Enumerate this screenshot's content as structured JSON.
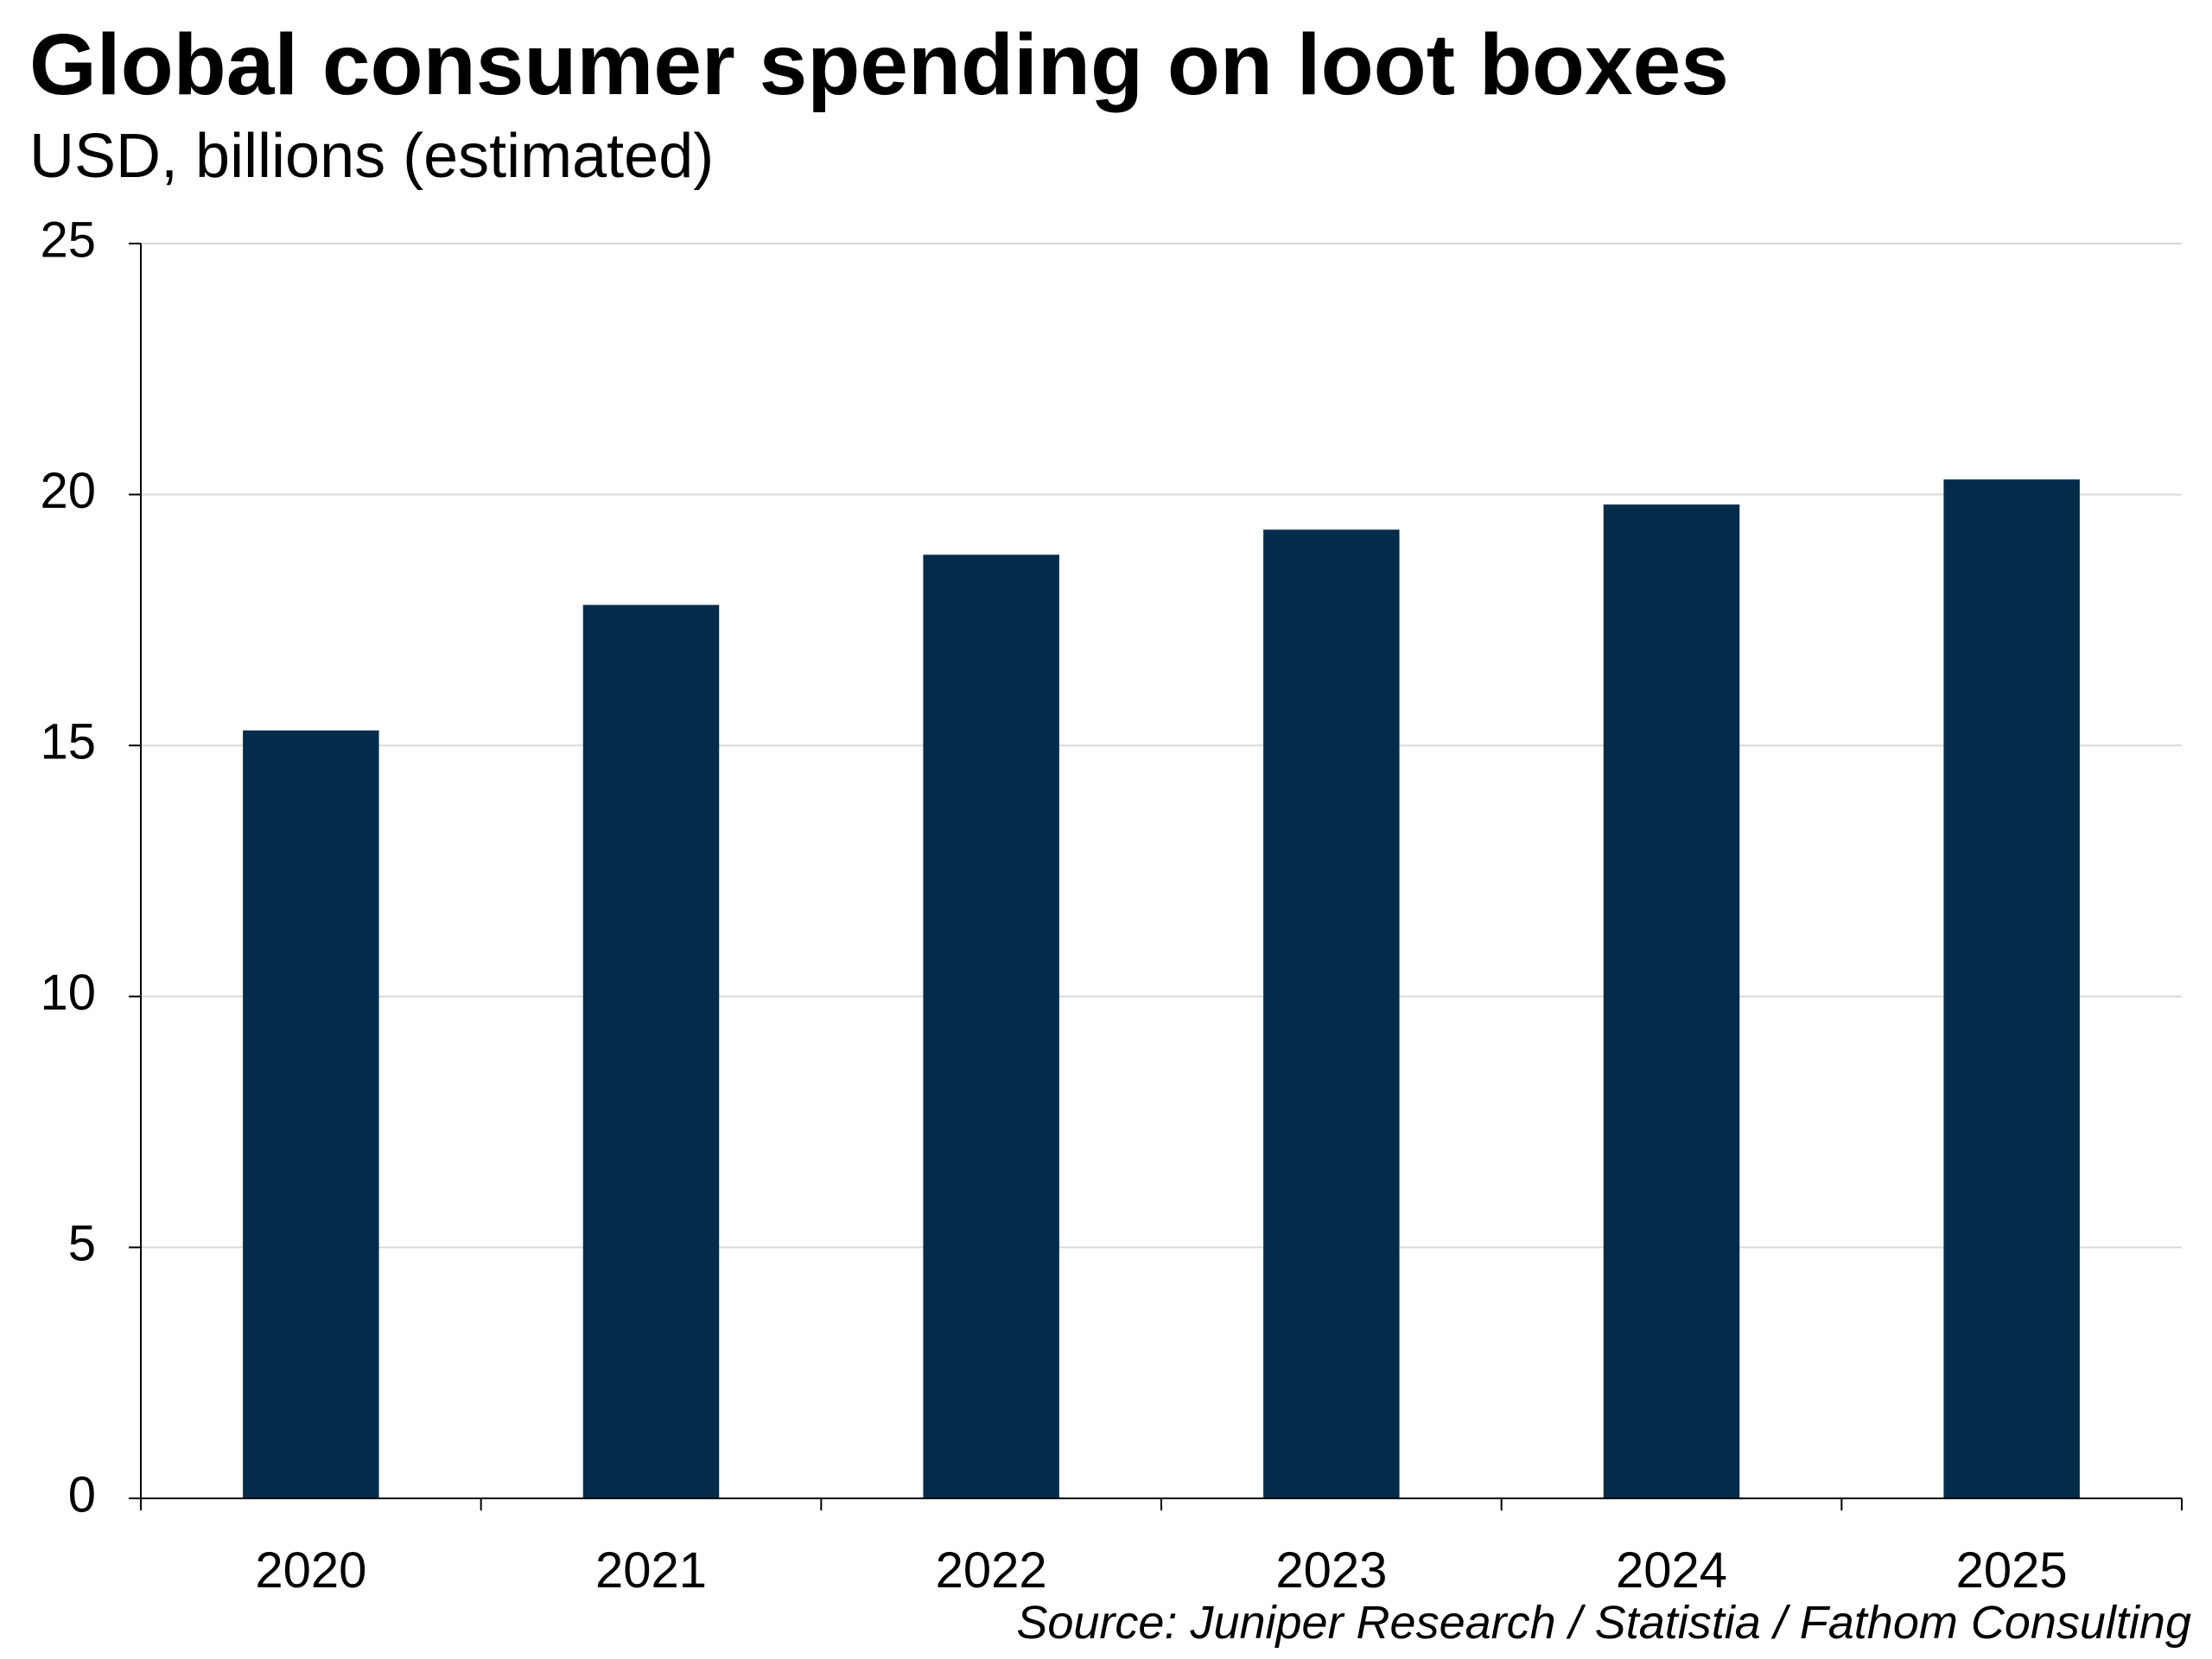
{
  "chart_data": {
    "type": "bar",
    "title": "Global consumer spending on loot boxes",
    "subtitle": "USD, billions (estimated)",
    "categories": [
      "2020",
      "2021",
      "2022",
      "2023",
      "2024",
      "2025"
    ],
    "values": [
      15.3,
      17.8,
      18.8,
      19.3,
      19.8,
      20.3
    ],
    "xlabel": "",
    "ylabel": "",
    "ylim": [
      0,
      25
    ],
    "yticks": [
      "0",
      "5",
      "10",
      "15",
      "20",
      "25"
    ],
    "grid": true,
    "bar_color": "#032b4a",
    "grid_color": "#d9d9d9",
    "source": "Source: Juniper Research / Statistia / Fathom Consulting"
  }
}
